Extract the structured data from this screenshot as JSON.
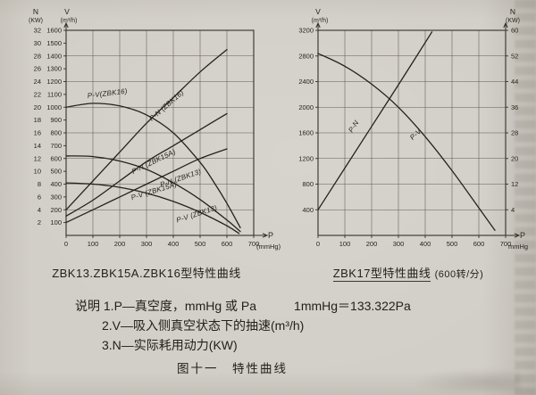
{
  "page": {
    "notes_prefix": "说明",
    "note1": "1.P—真空度，mmHg 或 Pa",
    "note1_right": "1mmHg＝133.322Pa",
    "note2": "2.V—吸入侧真空状态下的抽速(m³/h)",
    "note3": "3.N—实际耗用动力(KW)",
    "figure_caption": "图十一　特性曲线"
  },
  "chart_data": [
    {
      "type": "line",
      "title": "ZBK13.ZBK15A.ZBK16型特性曲线",
      "title_note": "",
      "x_axis": {
        "label": "P",
        "unit": "(mmHg)",
        "range": [
          0,
          700
        ],
        "ticks": [
          0,
          100,
          200,
          300,
          400,
          500,
          600,
          700
        ]
      },
      "v_axis": {
        "label": "V",
        "unit": "(m³/h)",
        "range": [
          0,
          1600
        ],
        "grid_step": 200,
        "ticks": [
          100,
          200,
          300,
          400,
          500,
          600,
          700,
          800,
          900,
          1000,
          1100,
          1200,
          1300,
          1400,
          1500,
          1600
        ]
      },
      "n_axis": {
        "label": "N",
        "unit": "(KW)",
        "side": "left",
        "scale": 50,
        "offset": 0,
        "ticks": [
          2,
          4,
          6,
          8,
          10,
          12,
          14,
          16,
          18,
          20,
          22,
          24,
          26,
          28,
          30,
          32
        ]
      },
      "series": [
        {
          "name": "P-V(ZBK16)",
          "axis": "V",
          "label_at": [
            155,
            1090
          ],
          "label_rot": -7,
          "points": [
            [
              0,
              1000
            ],
            [
              100,
              1030
            ],
            [
              200,
              1010
            ],
            [
              300,
              940
            ],
            [
              400,
              800
            ],
            [
              500,
              570
            ],
            [
              550,
              420
            ],
            [
              600,
              250
            ],
            [
              650,
              60
            ]
          ]
        },
        {
          "name": "P-N (ZBK16)",
          "axis": "N",
          "label_at": [
            380,
            1000
          ],
          "label_rot": -41,
          "points": [
            [
              0,
              4
            ],
            [
              100,
              8.5
            ],
            [
              200,
              13
            ],
            [
              300,
              17.5
            ],
            [
              400,
              21.5
            ],
            [
              500,
              25.5
            ],
            [
              600,
              29
            ]
          ]
        },
        {
          "name": "P-N (ZBK15A)",
          "axis": "N",
          "label_at": [
            330,
            560
          ],
          "label_rot": -26,
          "points": [
            [
              0,
              3
            ],
            [
              100,
              5.5
            ],
            [
              200,
              8.5
            ],
            [
              300,
              11.5
            ],
            [
              400,
              14
            ],
            [
              500,
              16.5
            ],
            [
              600,
              19
            ]
          ]
        },
        {
          "name": "P-N (ZBK13)",
          "axis": "N",
          "label_at": [
            430,
            430
          ],
          "label_rot": -19,
          "points": [
            [
              0,
              2
            ],
            [
              100,
              4
            ],
            [
              200,
              6
            ],
            [
              300,
              8
            ],
            [
              400,
              10
            ],
            [
              500,
              12
            ],
            [
              600,
              13.5
            ]
          ]
        },
        {
          "name": "P-V (ZBK15A)",
          "axis": "V",
          "label_at": [
            330,
            330
          ],
          "label_rot": -17,
          "points": [
            [
              0,
              620
            ],
            [
              100,
              615
            ],
            [
              200,
              580
            ],
            [
              300,
              515
            ],
            [
              400,
              410
            ],
            [
              500,
              280
            ],
            [
              600,
              120
            ],
            [
              650,
              30
            ]
          ]
        },
        {
          "name": "P-V (ZBK13)",
          "axis": "V",
          "label_at": [
            490,
            150
          ],
          "label_rot": -18,
          "points": [
            [
              0,
              410
            ],
            [
              100,
              400
            ],
            [
              200,
              375
            ],
            [
              300,
              330
            ],
            [
              400,
              265
            ],
            [
              500,
              180
            ],
            [
              600,
              75
            ],
            [
              645,
              15
            ]
          ]
        }
      ]
    },
    {
      "type": "line",
      "title": "ZBK17型特性曲线",
      "title_note": "(600转/分)",
      "x_axis": {
        "label": "P",
        "unit": "mmHg",
        "range": [
          0,
          700
        ],
        "ticks": [
          0,
          100,
          200,
          300,
          400,
          500,
          600,
          700
        ]
      },
      "v_axis": {
        "label": "V",
        "unit": "(m³/h)",
        "range": [
          0,
          3200
        ],
        "grid_step": 400,
        "ticks": [
          400,
          800,
          1200,
          1600,
          2000,
          2400,
          2800,
          3200
        ]
      },
      "n_axis": {
        "label": "N",
        "unit": "(KW)",
        "side": "right",
        "scale": 50,
        "offset": 4,
        "ticks": [
          4,
          12,
          20,
          28,
          36,
          44,
          52,
          60
        ]
      },
      "series": [
        {
          "name": "P-V",
          "axis": "V",
          "label_at": [
            370,
            1550
          ],
          "label_rot": -43,
          "points": [
            [
              0,
              2840
            ],
            [
              100,
              2640
            ],
            [
              200,
              2360
            ],
            [
              300,
              2000
            ],
            [
              400,
              1540
            ],
            [
              500,
              1010
            ],
            [
              600,
              430
            ],
            [
              660,
              80
            ]
          ]
        },
        {
          "name": "P-N",
          "axis": "N",
          "label_at": [
            140,
            1680
          ],
          "label_rot": -57,
          "points": [
            [
              0,
              4
            ],
            [
              100,
              17
            ],
            [
              200,
              30
            ],
            [
              300,
              43
            ],
            [
              425,
              59.5
            ]
          ]
        }
      ]
    }
  ]
}
